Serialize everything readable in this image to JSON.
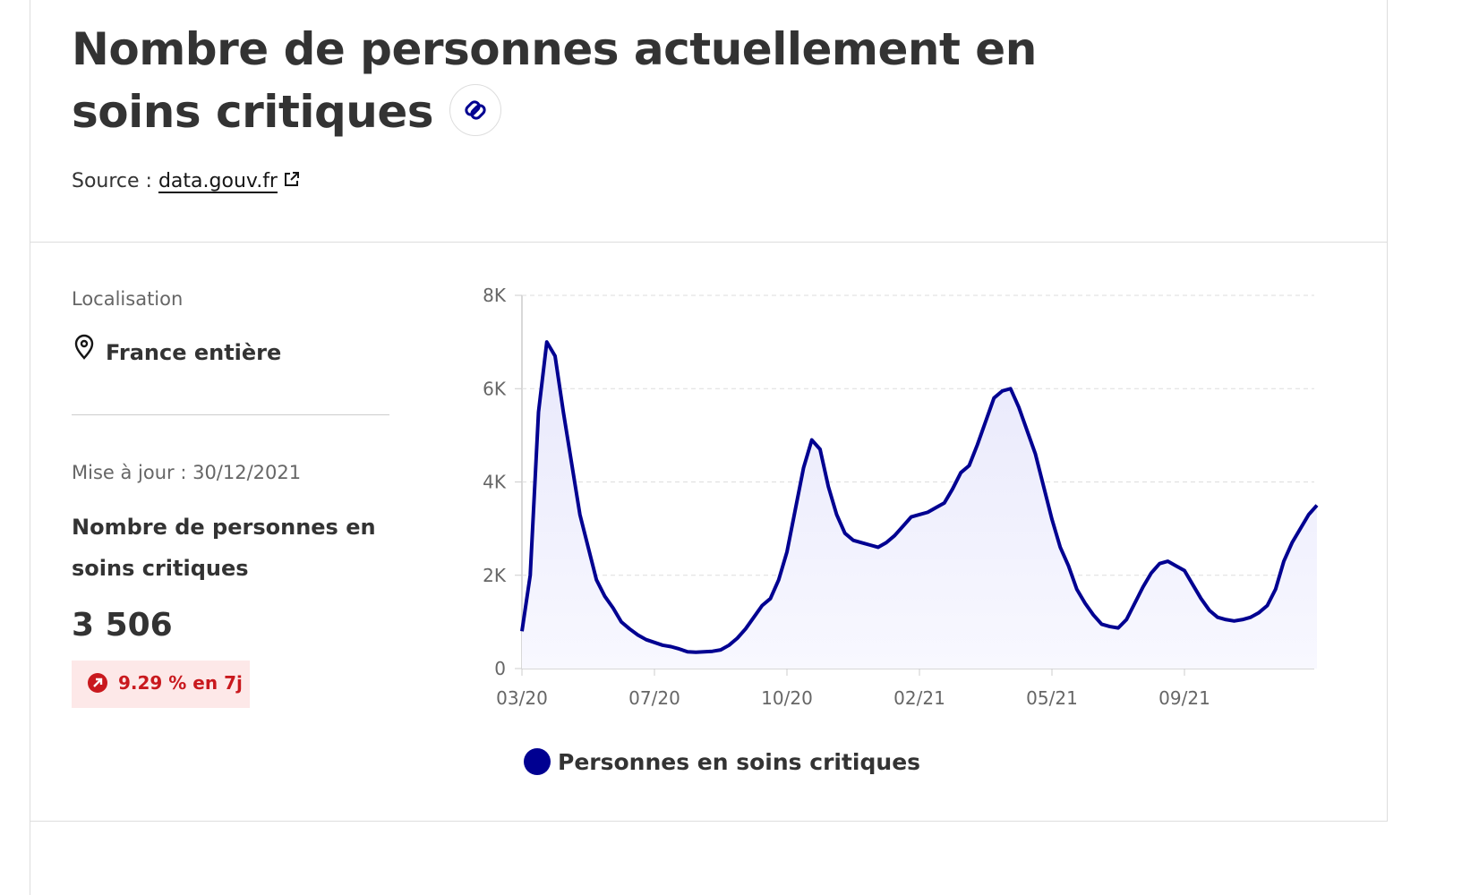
{
  "header": {
    "title": "Nombre de personnes actuellement en soins critiques",
    "source_label": "Source :",
    "source_link": "data.gouv.fr"
  },
  "sidebar": {
    "location_label": "Localisation",
    "location": "France entière",
    "updated": "Mise à jour : 30/12/2021",
    "kpi_label": "Nombre de personnes en soins critiques",
    "kpi_value": "3 506",
    "kpi_change": "9.29 % en 7j"
  },
  "chart_data": {
    "type": "line",
    "categories": [
      "03/20",
      null,
      null,
      null,
      null,
      null,
      null,
      null,
      null,
      null,
      null,
      null,
      null,
      null,
      null,
      null,
      "07/20",
      null,
      null,
      null,
      null,
      null,
      null,
      null,
      null,
      null,
      null,
      null,
      null,
      null,
      null,
      null,
      "10/20",
      null,
      null,
      null,
      null,
      null,
      null,
      null,
      null,
      null,
      null,
      null,
      null,
      null,
      null,
      null,
      "02/21",
      null,
      null,
      null,
      null,
      null,
      null,
      null,
      null,
      null,
      null,
      null,
      null,
      null,
      null,
      null,
      "05/21",
      null,
      null,
      null,
      null,
      null,
      null,
      null,
      null,
      null,
      null,
      null,
      null,
      null,
      null,
      null,
      "09/21",
      null,
      null,
      null,
      null,
      null,
      null,
      null,
      null,
      null,
      null,
      null,
      null,
      null,
      null,
      null,
      null
    ],
    "series": [
      {
        "name": "Personnes en soins critiques",
        "color": "#000091",
        "values": [
          800,
          2000,
          5500,
          7000,
          6700,
          5500,
          4400,
          3300,
          2600,
          1900,
          1550,
          1300,
          1000,
          850,
          720,
          620,
          560,
          500,
          470,
          420,
          360,
          350,
          360,
          370,
          400,
          500,
          650,
          850,
          1100,
          1350,
          1500,
          1900,
          2500,
          3400,
          4300,
          4900,
          4700,
          3900,
          3300,
          2900,
          2750,
          2700,
          2650,
          2600,
          2700,
          2850,
          3050,
          3250,
          3300,
          3350,
          3450,
          3550,
          3850,
          4200,
          4350,
          4800,
          5300,
          5800,
          5950,
          6000,
          5600,
          5100,
          4600,
          3900,
          3200,
          2600,
          2200,
          1700,
          1400,
          1150,
          950,
          900,
          870,
          1050,
          1400,
          1750,
          2050,
          2250,
          2300,
          2200,
          2100,
          1800,
          1500,
          1250,
          1100,
          1050,
          1020,
          1050,
          1100,
          1200,
          1350,
          1700,
          2300,
          2700,
          3000,
          3300,
          3500
        ]
      }
    ],
    "ylim": [
      0,
      8000
    ],
    "yticks": [
      0,
      {
        "value": 2000,
        "label": "2K"
      },
      {
        "value": 4000,
        "label": "4K"
      },
      {
        "value": 6000,
        "label": "6K"
      },
      {
        "value": 8000,
        "label": "8K"
      }
    ],
    "grid": true
  }
}
